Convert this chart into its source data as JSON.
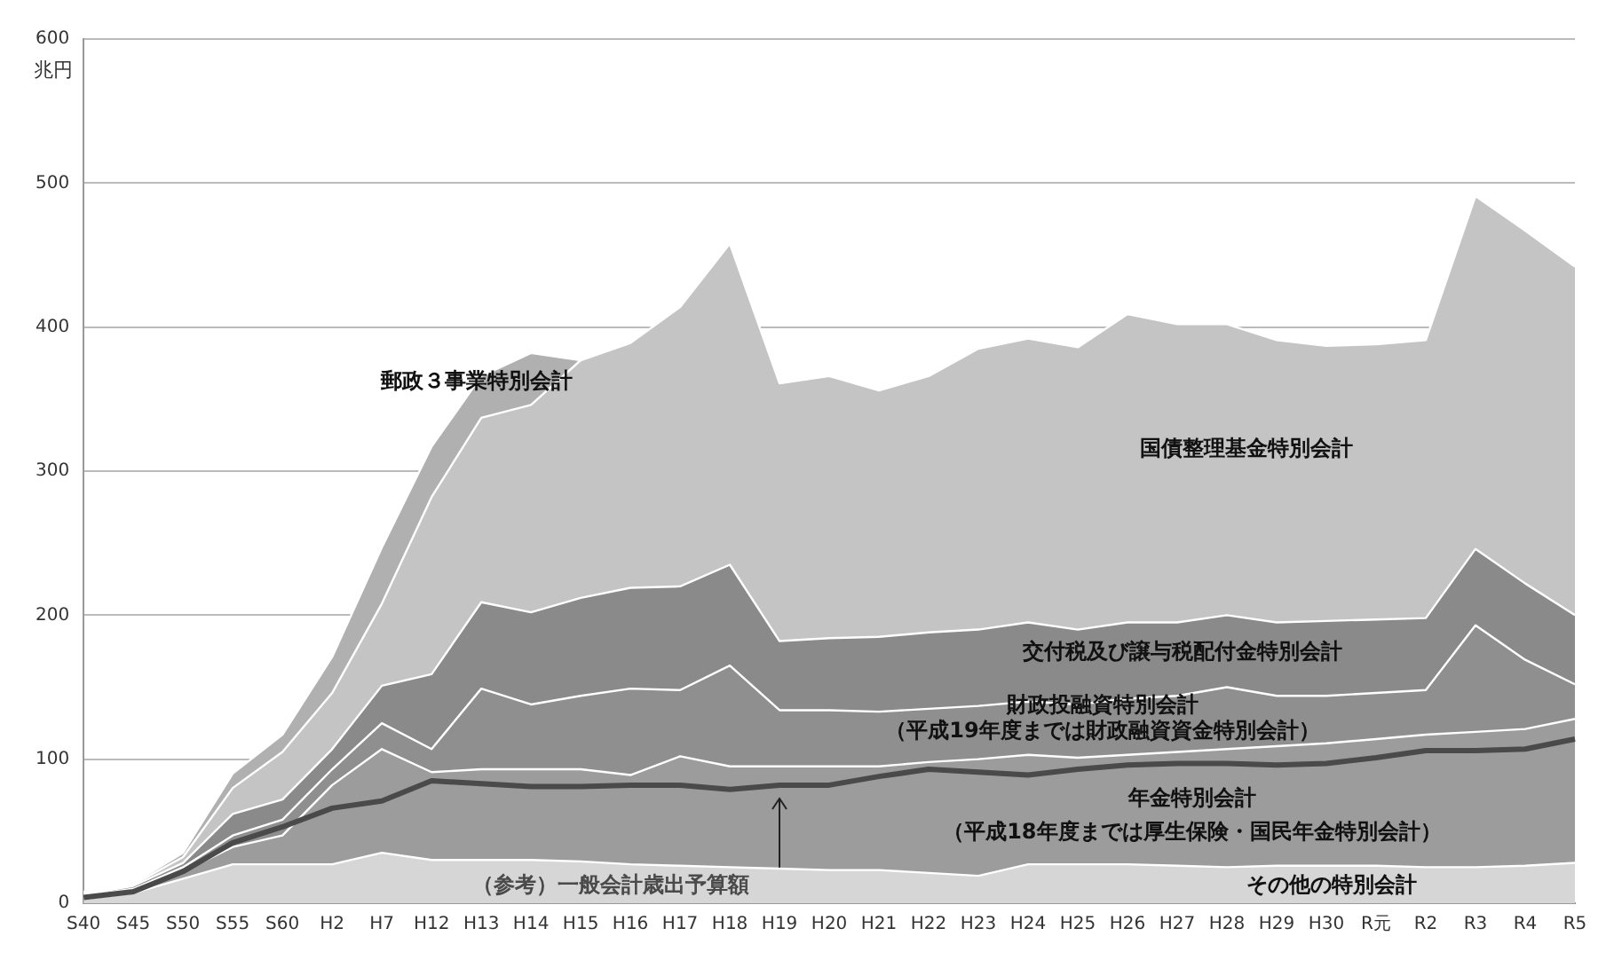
{
  "chart_data": {
    "type": "area",
    "ylabel": "兆円",
    "stacked": true,
    "grid": "y",
    "legend": false,
    "marker": "none",
    "categories": [
      "S40",
      "S45",
      "S50",
      "S55",
      "S60",
      "H2",
      "H7",
      "H12",
      "H13",
      "H14",
      "H15",
      "H16",
      "H17",
      "H18",
      "H19",
      "H20",
      "H21",
      "H22",
      "H23",
      "H24",
      "H25",
      "H26",
      "H27",
      "H28",
      "H29",
      "H30",
      "R元",
      "R2",
      "R3",
      "R4",
      "R5"
    ],
    "ylim": [
      0,
      600
    ],
    "yticks": [
      0,
      100,
      200,
      300,
      400,
      500,
      600
    ],
    "series": [
      {
        "name": "その他の特別会計",
        "color": "#d6d6d6",
        "values": [
          3,
          7,
          17,
          27,
          27,
          27,
          35,
          30,
          30,
          30,
          29,
          27,
          26,
          25,
          24,
          23,
          23,
          21,
          19,
          27,
          27,
          27,
          26,
          25,
          26,
          26,
          26,
          25,
          25,
          26,
          28
        ]
      },
      {
        "name": "年金特別会計",
        "color": "#9c9c9c",
        "values": [
          1,
          2,
          5,
          12,
          20,
          55,
          72,
          61,
          63,
          63,
          64,
          62,
          76,
          70,
          71,
          72,
          72,
          77,
          81,
          76,
          74,
          76,
          79,
          82,
          83,
          85,
          88,
          92,
          94,
          95,
          100
        ]
      },
      {
        "name": "財政投融資特別会計",
        "color": "#8f8f8f",
        "values": [
          1,
          1,
          3,
          8,
          11,
          11,
          18,
          16,
          56,
          45,
          51,
          60,
          46,
          70,
          39,
          39,
          38,
          37,
          37,
          37,
          37,
          39,
          39,
          43,
          35,
          33,
          32,
          31,
          74,
          48,
          24
        ]
      },
      {
        "name": "交付税及び譲与税配付金特別会計",
        "color": "#8a8a8a",
        "values": [
          1,
          2,
          3,
          15,
          14,
          14,
          26,
          52,
          60,
          64,
          68,
          70,
          72,
          70,
          48,
          50,
          52,
          53,
          53,
          55,
          52,
          53,
          51,
          50,
          51,
          52,
          51,
          50,
          53,
          53,
          48
        ]
      },
      {
        "name": "国債整理基金特別会計",
        "color": "#c4c4c4",
        "values": [
          1,
          1,
          4,
          18,
          33,
          39,
          57,
          123,
          128,
          144,
          165,
          170,
          194,
          223,
          179,
          182,
          171,
          178,
          195,
          197,
          196,
          214,
          207,
          202,
          196,
          191,
          191,
          193,
          245,
          245,
          242
        ]
      },
      {
        "name": "郵政３事業特別会計",
        "color": "#b0b0b0",
        "values": [
          1,
          1,
          3,
          10,
          12,
          25,
          39,
          35,
          29,
          36,
          0,
          null,
          null,
          null,
          null,
          null,
          null,
          null,
          null,
          null,
          null,
          null,
          null,
          null,
          null,
          null,
          null,
          null,
          null,
          null,
          null
        ]
      },
      {
        "name": "（参考）一般会計歳出予算額",
        "type": "line",
        "color": "#4a4a4a",
        "values": [
          4,
          8,
          22,
          42,
          53,
          66,
          71,
          85,
          83,
          81,
          81,
          82,
          82,
          79,
          82,
          82,
          88,
          93,
          91,
          89,
          93,
          96,
          97,
          97,
          96,
          97,
          101,
          106,
          106,
          107,
          114
        ]
      }
    ],
    "annotations": [
      "（平成18年度までは厚生保険・国民年金特別会計）",
      "（平成19年度までは財政融資資金特別会計）"
    ]
  }
}
